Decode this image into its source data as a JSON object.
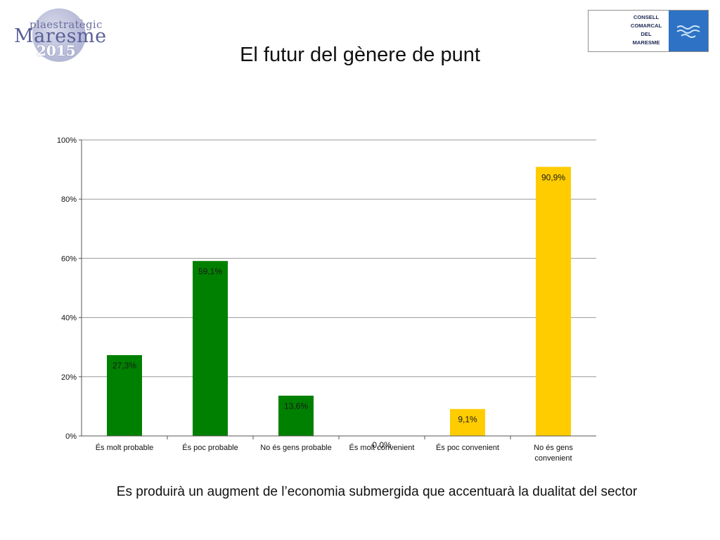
{
  "header": {
    "logo_left": {
      "line1": "plaestratègic",
      "line2": "Maresme",
      "line3": "2015"
    },
    "logo_right": {
      "lines": [
        "CONSELL",
        "COMARCAL",
        "DEL",
        "MARESME"
      ],
      "color": "#2d72c4"
    },
    "title": "El futur del gènere de punt"
  },
  "chart_data": {
    "type": "bar",
    "title": "",
    "categories": [
      "És molt probable",
      "És poc probable",
      "No és gens probable",
      "És molt convenient",
      "És poc convenient",
      "No és gens convenient"
    ],
    "values": [
      27.3,
      59.1,
      13.6,
      0.0,
      9.1,
      90.9
    ],
    "value_labels": [
      "27,3%",
      "59,1%",
      "13,6%",
      "0,0%",
      "9,1%",
      "90,9%"
    ],
    "colors": [
      "#008000",
      "#008000",
      "#008000",
      "#ffcc00",
      "#ffcc00",
      "#ffcc00"
    ],
    "ylim": [
      0,
      100
    ],
    "yticks": [
      {
        "v": 0,
        "label": "0%"
      },
      {
        "v": 20,
        "label": "20%"
      },
      {
        "v": 40,
        "label": "40%"
      },
      {
        "v": 60,
        "label": "60%"
      },
      {
        "v": 80,
        "label": "80%"
      },
      {
        "v": 100,
        "label": "100%"
      }
    ],
    "grid": true,
    "xlabel": "",
    "ylabel": ""
  },
  "footer": {
    "caption": "Es produirà un augment de l’economia submergida que accentuarà la dualitat del sector"
  }
}
